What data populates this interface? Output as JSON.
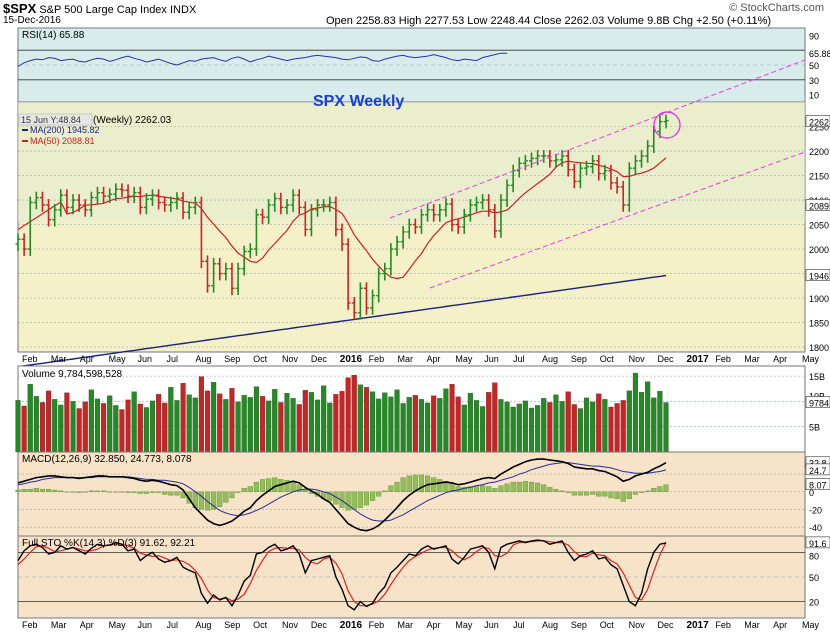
{
  "header": {
    "symbol": "$SPX",
    "name": "S&P 500 Large Cap Index",
    "exchange": "INDX",
    "date": "15-Dec-2016",
    "quote": "Open 2258.83  High 2277.53  Low 2248.44  Close 2262.03  Volume 9.8B  Chg +2.50 (+0.11%)",
    "watermark": "© StockCharts.com"
  },
  "annotation": {
    "title": "SPX Weekly",
    "color": "#1a3fd4"
  },
  "colors": {
    "up": "#228b22",
    "down": "#cc2222",
    "ma50": "#cc2222",
    "ma200": "#1a237e",
    "trend": "#e040e0"
  },
  "chart_data": [
    {
      "type": "line",
      "panel": "rsi",
      "label": "RSI(14) 65.88",
      "ylim": [
        0,
        100
      ],
      "ticks": [
        "90",
        "65.88",
        "50",
        "30",
        "10"
      ],
      "series": [
        {
          "name": "RSI(14)",
          "values": [
            48,
            53,
            56,
            58,
            57,
            60,
            59,
            56,
            57,
            58,
            55,
            54,
            57,
            59,
            58,
            55,
            57,
            60,
            62,
            59,
            57,
            54,
            56,
            58,
            55,
            52,
            50,
            53,
            56,
            55,
            58,
            59,
            60,
            57,
            55,
            59,
            61,
            58,
            54,
            57,
            59,
            62,
            60,
            58,
            56,
            58,
            59,
            60,
            62,
            63,
            62,
            61,
            60,
            58,
            57,
            59,
            61,
            60,
            56,
            55,
            58,
            60,
            62,
            63,
            61,
            60,
            61,
            62,
            64,
            62,
            60,
            57,
            56,
            58,
            57,
            56,
            60,
            62,
            64,
            66,
            65.88
          ]
        }
      ]
    },
    {
      "type": "candlestick",
      "panel": "price",
      "title": "SPX Weekly",
      "legend": [
        "(Weekly) 2262.03",
        "MA(200) 1945.82",
        "MA(50) 2088.81"
      ],
      "crosshair": "15 Jun Y:48.84",
      "price_label": "2262",
      "ma200_label": "1946",
      "ma50_label": "2089",
      "ylim": [
        1790,
        2300
      ],
      "yticks": [
        1800,
        1850,
        1900,
        1950,
        2000,
        2050,
        2100,
        2150,
        2200,
        2250
      ],
      "xlabels": [
        "Feb",
        "Mar",
        "Apr",
        "May",
        "Jun",
        "Jul",
        "Aug",
        "Sep",
        "Oct",
        "Nov",
        "Dec",
        "2016",
        "Feb",
        "Mar",
        "Apr",
        "May",
        "Jun",
        "Jul",
        "Aug",
        "Sep",
        "Oct",
        "Nov",
        "Dec",
        "2017",
        "Feb",
        "Mar",
        "Apr",
        "May"
      ],
      "close": [
        2020,
        2000,
        2095,
        2105,
        2090,
        2060,
        2080,
        2110,
        2085,
        2100,
        2090,
        2080,
        2105,
        2115,
        2108,
        2112,
        2122,
        2120,
        2108,
        2115,
        2085,
        2102,
        2110,
        2095,
        2090,
        2095,
        2104,
        2075,
        2085,
        2095,
        1975,
        1925,
        1970,
        1950,
        1960,
        1920,
        1960,
        1995,
        2000,
        2070,
        2065,
        2090,
        2103,
        2085,
        2090,
        2110,
        2085,
        2040,
        2080,
        2090,
        2090,
        2095,
        2040,
        2010,
        1890,
        1870,
        1920,
        1880,
        1905,
        1950,
        1960,
        2000,
        2015,
        2035,
        2050,
        2045,
        2070,
        2080,
        2070,
        2080,
        2092,
        2050,
        2045,
        2070,
        2090,
        2095,
        2100,
        2080,
        2037,
        2100,
        2130,
        2160,
        2175,
        2180,
        2185,
        2190,
        2190,
        2180,
        2182,
        2190,
        2162,
        2138,
        2165,
        2168,
        2180,
        2154,
        2160,
        2135,
        2127,
        2090,
        2165,
        2180,
        2190,
        2210,
        2240,
        2260,
        2262.03
      ]
    },
    {
      "type": "bar",
      "panel": "volume",
      "label": "Volume 9,784,598,528",
      "yticks_label": [
        "15B",
        "10B",
        "5B"
      ],
      "value_label": "9784",
      "values_billion": [
        10.2,
        9.1,
        13.4,
        11.0,
        9.8,
        12.1,
        10.4,
        9.3,
        11.7,
        10.0,
        8.6,
        9.9,
        12.3,
        10.5,
        9.6,
        11.1,
        9.2,
        8.4,
        10.3,
        11.9,
        9.5,
        8.8,
        10.1,
        11.4,
        9.7,
        12.8,
        10.2,
        13.6,
        11.3,
        10.7,
        14.9,
        12.1,
        13.8,
        11.5,
        10.4,
        12.6,
        9.9,
        11.2,
        10.8,
        12.9,
        11.0,
        10.1,
        12.4,
        9.8,
        11.6,
        10.6,
        9.4,
        12.2,
        11.8,
        10.3,
        13.1,
        9.7,
        11.4,
        12.0,
        14.7,
        15.2,
        13.3,
        12.8,
        11.9,
        10.5,
        11.7,
        10.9,
        12.3,
        9.6,
        10.8,
        11.2,
        10.4,
        9.7,
        11.1,
        10.6,
        12.5,
        13.4,
        10.9,
        9.3,
        11.6,
        10.2,
        9.0,
        11.8,
        13.7,
        10.4,
        9.9,
        8.9,
        9.5,
        10.1,
        8.7,
        9.2,
        10.6,
        9.8,
        11.3,
        10.0,
        11.9,
        9.4,
        8.6,
        10.7,
        9.9,
        11.5,
        10.4,
        8.9,
        9.6,
        10.2,
        12.1,
        15.6,
        11.8,
        13.9,
        10.7,
        12.0,
        9.78
      ]
    },
    {
      "type": "line",
      "panel": "macd",
      "label": "MACD(12,26,9) 32.850, 24.773, 8.078",
      "ylim": [
        -50,
        45
      ],
      "yticks": [
        "32.8",
        "24.7",
        "8.07",
        "0",
        "-20",
        "-40"
      ],
      "series": [
        {
          "name": "MACD",
          "values": [
            10,
            12,
            14,
            16,
            17,
            18,
            18,
            17,
            16,
            16,
            15,
            16,
            17,
            18,
            18,
            17,
            17,
            17,
            16,
            15,
            13,
            12,
            13,
            12,
            10,
            8,
            7,
            2,
            -8,
            -18,
            -25,
            -32,
            -36,
            -38,
            -36,
            -33,
            -28,
            -22,
            -18,
            -10,
            -4,
            1,
            6,
            8,
            10,
            12,
            10,
            5,
            1,
            -3,
            -8,
            -12,
            -20,
            -28,
            -36,
            -40,
            -43,
            -44,
            -42,
            -38,
            -32,
            -25,
            -18,
            -10,
            -4,
            1,
            5,
            8,
            9,
            10,
            11,
            10,
            8,
            9,
            11,
            13,
            15,
            16,
            15,
            20,
            24,
            28,
            31,
            34,
            36,
            37,
            37,
            36,
            35,
            34,
            32,
            28,
            27,
            26,
            26,
            24,
            23,
            20,
            17,
            12,
            14,
            18,
            20,
            22,
            26,
            29,
            32.85
          ]
        },
        {
          "name": "Signal",
          "values": [
            8,
            9,
            11,
            12,
            14,
            15,
            16,
            16,
            16,
            16,
            16,
            16,
            16,
            17,
            17,
            17,
            17,
            17,
            17,
            16,
            15,
            14,
            14,
            13,
            13,
            12,
            11,
            9,
            5,
            0,
            -5,
            -11,
            -16,
            -21,
            -24,
            -26,
            -27,
            -26,
            -24,
            -21,
            -18,
            -14,
            -10,
            -6,
            -3,
            0,
            2,
            3,
            3,
            2,
            0,
            -2,
            -6,
            -10,
            -15,
            -20,
            -25,
            -29,
            -32,
            -33,
            -33,
            -32,
            -29,
            -26,
            -22,
            -18,
            -14,
            -10,
            -7,
            -4,
            -1,
            1,
            2,
            4,
            5,
            7,
            8,
            10,
            11,
            13,
            15,
            17,
            20,
            22,
            25,
            27,
            29,
            31,
            32,
            33,
            33,
            32,
            31,
            30,
            29,
            29,
            28,
            27,
            25,
            23,
            22,
            21,
            21,
            21,
            22,
            23,
            24.773
          ]
        }
      ],
      "histogram": [
        2,
        3,
        3,
        4,
        3,
        3,
        2,
        1,
        0,
        0,
        -1,
        0,
        1,
        1,
        1,
        0,
        0,
        0,
        -1,
        -1,
        -2,
        -2,
        -1,
        -1,
        -3,
        -4,
        -4,
        -7,
        -13,
        -18,
        -20,
        -21,
        -20,
        -17,
        -12,
        -7,
        -1,
        4,
        6,
        11,
        14,
        15,
        16,
        14,
        13,
        12,
        8,
        2,
        -2,
        -5,
        -8,
        -10,
        -14,
        -18,
        -21,
        -20,
        -18,
        -15,
        -10,
        -5,
        1,
        7,
        11,
        16,
        18,
        19,
        19,
        18,
        16,
        14,
        12,
        9,
        6,
        5,
        6,
        6,
        7,
        6,
        4,
        7,
        9,
        11,
        11,
        12,
        11,
        10,
        8,
        5,
        3,
        1,
        -1,
        -4,
        -4,
        -4,
        -3,
        -5,
        -5,
        -7,
        -8,
        -11,
        -8,
        -3,
        -1,
        1,
        4,
        6,
        8.078
      ]
    },
    {
      "type": "line",
      "panel": "stochastic",
      "label": "Full STO %K(14,3) %D(3) 91.62, 92.21",
      "ylim": [
        0,
        100
      ],
      "yticks": [
        "91.6",
        "80",
        "50",
        "20"
      ],
      "series": [
        {
          "name": "%K",
          "values": [
            70,
            82,
            88,
            90,
            86,
            78,
            80,
            88,
            84,
            86,
            82,
            78,
            85,
            90,
            88,
            89,
            92,
            90,
            82,
            84,
            70,
            76,
            80,
            72,
            68,
            70,
            74,
            62,
            58,
            55,
            30,
            18,
            28,
            22,
            25,
            15,
            28,
            45,
            52,
            78,
            80,
            86,
            90,
            82,
            84,
            88,
            78,
            55,
            70,
            72,
            74,
            76,
            50,
            35,
            15,
            10,
            20,
            14,
            18,
            30,
            38,
            55,
            62,
            70,
            78,
            76,
            84,
            88,
            84,
            86,
            88,
            72,
            66,
            74,
            84,
            86,
            88,
            80,
            60,
            86,
            90,
            92,
            94,
            92,
            94,
            95,
            94,
            90,
            92,
            94,
            80,
            70,
            76,
            78,
            82,
            72,
            74,
            65,
            60,
            40,
            20,
            15,
            30,
            60,
            80,
            90,
            91.62
          ]
        },
        {
          "name": "%D",
          "values": [
            65,
            72,
            80,
            87,
            88,
            85,
            81,
            82,
            84,
            86,
            84,
            82,
            82,
            84,
            88,
            89,
            90,
            90,
            88,
            85,
            79,
            77,
            75,
            76,
            73,
            70,
            71,
            69,
            65,
            58,
            48,
            34,
            25,
            23,
            25,
            21,
            23,
            29,
            42,
            58,
            70,
            81,
            85,
            86,
            85,
            85,
            83,
            74,
            68,
            66,
            72,
            74,
            67,
            54,
            33,
            20,
            15,
            15,
            17,
            21,
            29,
            41,
            52,
            62,
            70,
            75,
            79,
            83,
            85,
            86,
            86,
            82,
            75,
            71,
            75,
            81,
            86,
            85,
            76,
            75,
            79,
            89,
            92,
            93,
            93,
            94,
            94,
            93,
            92,
            92,
            89,
            81,
            75,
            75,
            79,
            77,
            76,
            70,
            66,
            55,
            40,
            25,
            22,
            35,
            57,
            77,
            92.21
          ]
        }
      ]
    }
  ]
}
